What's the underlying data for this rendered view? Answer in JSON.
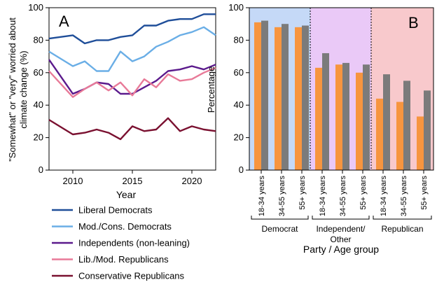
{
  "chart_data": [
    {
      "type": "line",
      "panel_label": "A",
      "xlabel": "Year",
      "ylabel_lines": [
        "\"Somewhat\" or \"very\" worried about",
        "climate change (%)"
      ],
      "xlim": [
        2008,
        2022
      ],
      "ylim": [
        0,
        100
      ],
      "xticks": [
        2010,
        2015,
        2020
      ],
      "yticks": [
        0,
        20,
        40,
        60,
        80,
        100
      ],
      "legend_position": "below",
      "x": [
        2008,
        2010,
        2011,
        2012,
        2013,
        2014,
        2015,
        2016,
        2017,
        2018,
        2019,
        2020,
        2021,
        2022
      ],
      "series": [
        {
          "name": "Liberal Democrats",
          "color": "#1f4e99",
          "values": [
            81,
            83,
            78,
            80,
            80,
            82,
            83,
            89,
            89,
            92,
            93,
            93,
            96,
            96
          ]
        },
        {
          "name": "Mod./Cons. Democrats",
          "color": "#6aaee6",
          "values": [
            73,
            64,
            67,
            61,
            61,
            73,
            67,
            70,
            76,
            79,
            83,
            85,
            88,
            83
          ]
        },
        {
          "name": "Independents (non-leaning)",
          "color": "#5b1a8c",
          "values": [
            68,
            47,
            50,
            54,
            53,
            47,
            47,
            51,
            55,
            61,
            62,
            64,
            62,
            65
          ]
        },
        {
          "name": "Lib./Mod. Republicans",
          "color": "#e87a98",
          "values": [
            61,
            45,
            50,
            54,
            49,
            54,
            46,
            56,
            51,
            59,
            55,
            56,
            60,
            63
          ]
        },
        {
          "name": "Conservative Republicans",
          "color": "#7a1030",
          "values": [
            31,
            22,
            23,
            25,
            23,
            19,
            27,
            24,
            25,
            32,
            24,
            27,
            25,
            24
          ]
        }
      ]
    },
    {
      "type": "bar",
      "panel_label": "B",
      "xlabel": "Party / Age group",
      "ylabel": "Percentage",
      "ylim": [
        0,
        100
      ],
      "yticks": [
        0,
        20,
        40,
        60,
        80,
        100
      ],
      "groups": [
        {
          "name": "Democrat",
          "background": "#c5d9f7",
          "categories": [
            "18-34 years",
            "34-55 years",
            "55+ years"
          ],
          "orange": [
            91,
            88,
            88
          ],
          "gray": [
            92,
            90,
            89
          ]
        },
        {
          "name_lines": [
            "Independent/",
            "Other"
          ],
          "background": "#eac9f7",
          "categories": [
            "18-34 years",
            "34-55 years",
            "55+ years"
          ],
          "orange": [
            63,
            65,
            60
          ],
          "gray": [
            72,
            66,
            65
          ]
        },
        {
          "name": "Republican",
          "background": "#f8c9cc",
          "categories": [
            "18-34 years",
            "34-55 years",
            "55+ years"
          ],
          "orange": [
            44,
            42,
            33
          ],
          "gray": [
            59,
            55,
            49
          ]
        }
      ],
      "bar_colors": {
        "orange": "#f7953f",
        "gray": "#7b7b7b"
      }
    }
  ]
}
